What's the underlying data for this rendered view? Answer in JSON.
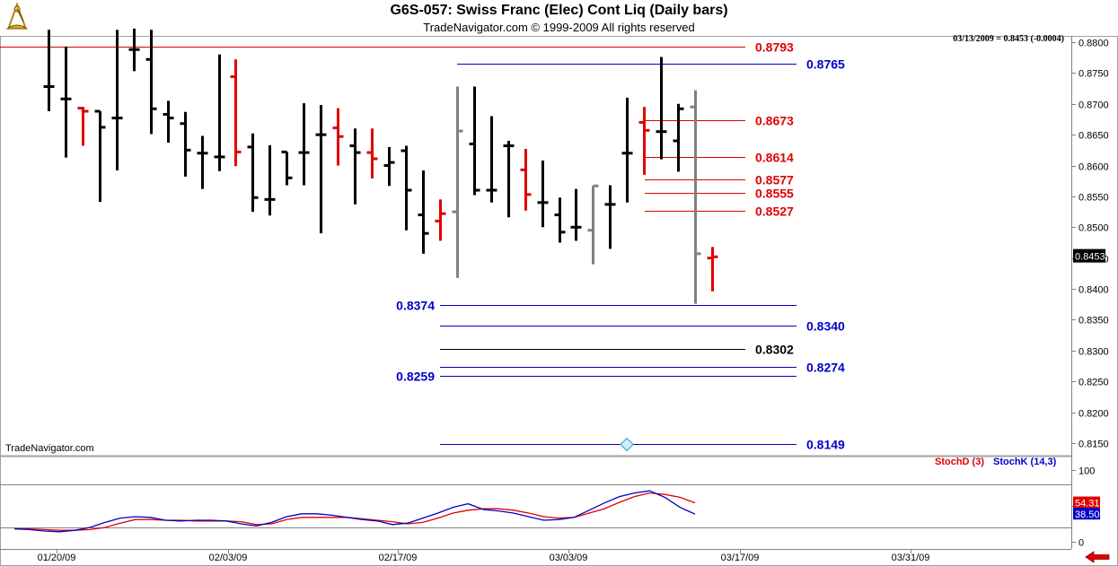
{
  "header": {
    "title": "G6S-057:  Swiss Franc (Elec) Cont Liq  (Daily bars)",
    "subtitle": "TradeNavigator.com © 1999-2009 All rights reserved",
    "readout": "03/13/2009 = 0.8453 (-0.0004)",
    "watermark": "TradeNavigator.com",
    "logo_icon": "sextant-logo-icon",
    "nav_icon": "back-arrow-icon"
  },
  "colors": {
    "up_bar": "#000000",
    "down_bar": "#e00000",
    "neutral_bar": "#808080",
    "blue_level": "#0000c8",
    "red_level": "#e00000",
    "black_level": "#000000",
    "stoch_d": "#e00000",
    "stoch_k": "#0000c8",
    "last_price_bg": "#000000"
  },
  "chart_data": [
    {
      "type": "ohlc",
      "title": "G6S-057:  Swiss Franc (Elec) Cont Liq  (Daily bars)",
      "y_axis": {
        "ylim": [
          0.812,
          0.8815
        ],
        "ticks": [
          "0.8800",
          "0.8750",
          "0.8700",
          "0.8650",
          "0.8600",
          "0.8550",
          "0.8500",
          "0.8450",
          "0.8400",
          "0.8350",
          "0.8300",
          "0.8250",
          "0.8200",
          "0.8150"
        ],
        "last_price_label": "0.8453"
      },
      "x_axis": {
        "tick_labels": [
          "01/20/09",
          "02/03/09",
          "02/17/09",
          "03/03/09",
          "03/17/09",
          "03/31/09"
        ]
      },
      "bars": [
        {
          "date": "01/14/09",
          "h": 0.882,
          "l": 0.8688,
          "o": 0.8728,
          "c": 0.8728,
          "color": "up_bar"
        },
        {
          "date": "01/15/09",
          "h": 0.8793,
          "l": 0.8613,
          "o": 0.8708,
          "c": 0.8708,
          "color": "up_bar"
        },
        {
          "date": "01/16/09",
          "h": 0.8695,
          "l": 0.8632,
          "o": 0.8693,
          "c": 0.8688,
          "color": "down_bar"
        },
        {
          "date": "01/20/09",
          "h": 0.8688,
          "l": 0.8541,
          "o": 0.8688,
          "c": 0.8662,
          "color": "up_bar"
        },
        {
          "date": "01/21/09",
          "h": 0.882,
          "l": 0.8592,
          "o": 0.8677,
          "c": 0.8677,
          "color": "up_bar"
        },
        {
          "date": "01/22/09",
          "h": 0.8822,
          "l": 0.8753,
          "o": 0.8788,
          "c": 0.8788,
          "color": "up_bar"
        },
        {
          "date": "01/23/09",
          "h": 0.882,
          "l": 0.8651,
          "o": 0.8772,
          "c": 0.8692,
          "color": "up_bar"
        },
        {
          "date": "01/26/09",
          "h": 0.8705,
          "l": 0.8637,
          "o": 0.8683,
          "c": 0.8677,
          "color": "up_bar"
        },
        {
          "date": "01/27/09",
          "h": 0.8687,
          "l": 0.8582,
          "o": 0.8668,
          "c": 0.8625,
          "color": "up_bar"
        },
        {
          "date": "01/28/09",
          "h": 0.8648,
          "l": 0.8562,
          "o": 0.862,
          "c": 0.862,
          "color": "up_bar"
        },
        {
          "date": "01/29/09",
          "h": 0.878,
          "l": 0.8591,
          "o": 0.8614,
          "c": 0.8614,
          "color": "up_bar"
        },
        {
          "date": "01/30/09",
          "h": 0.8772,
          "l": 0.8599,
          "o": 0.8744,
          "c": 0.8622,
          "color": "down_bar"
        },
        {
          "date": "02/02/09",
          "h": 0.8652,
          "l": 0.8525,
          "o": 0.863,
          "c": 0.8548,
          "color": "up_bar"
        },
        {
          "date": "02/03/09",
          "h": 0.8633,
          "l": 0.8519,
          "o": 0.8545,
          "c": 0.8545,
          "color": "up_bar"
        },
        {
          "date": "02/04/09",
          "h": 0.8622,
          "l": 0.8568,
          "o": 0.8622,
          "c": 0.858,
          "color": "up_bar"
        },
        {
          "date": "02/05/09",
          "h": 0.8701,
          "l": 0.8568,
          "o": 0.8621,
          "c": 0.8621,
          "color": "up_bar"
        },
        {
          "date": "02/06/09",
          "h": 0.8698,
          "l": 0.849,
          "o": 0.865,
          "c": 0.865,
          "color": "up_bar"
        },
        {
          "date": "02/09/09",
          "h": 0.8693,
          "l": 0.86,
          "o": 0.8661,
          "c": 0.8647,
          "color": "down_bar"
        },
        {
          "date": "02/10/09",
          "h": 0.866,
          "l": 0.8537,
          "o": 0.8632,
          "c": 0.8621,
          "color": "up_bar"
        },
        {
          "date": "02/11/09",
          "h": 0.866,
          "l": 0.8579,
          "o": 0.8621,
          "c": 0.8611,
          "color": "down_bar"
        },
        {
          "date": "02/12/09",
          "h": 0.863,
          "l": 0.8567,
          "o": 0.86,
          "c": 0.8605,
          "color": "up_bar"
        },
        {
          "date": "02/13/09",
          "h": 0.8632,
          "l": 0.8495,
          "o": 0.8624,
          "c": 0.856,
          "color": "up_bar"
        },
        {
          "date": "02/17/09",
          "h": 0.8592,
          "l": 0.8457,
          "o": 0.852,
          "c": 0.849,
          "color": "up_bar"
        },
        {
          "date": "02/18/09",
          "h": 0.8545,
          "l": 0.8478,
          "o": 0.851,
          "c": 0.8522,
          "color": "down_bar"
        },
        {
          "date": "02/19/09",
          "h": 0.8728,
          "l": 0.8418,
          "o": 0.8525,
          "c": 0.8656,
          "color": "neutral_bar"
        },
        {
          "date": "02/20/09",
          "h": 0.8728,
          "l": 0.8552,
          "o": 0.8635,
          "c": 0.856,
          "color": "up_bar"
        },
        {
          "date": "02/23/09",
          "h": 0.868,
          "l": 0.854,
          "o": 0.856,
          "c": 0.856,
          "color": "up_bar"
        },
        {
          "date": "02/24/09",
          "h": 0.864,
          "l": 0.8516,
          "o": 0.8632,
          "c": 0.8632,
          "color": "up_bar"
        },
        {
          "date": "02/25/09",
          "h": 0.8627,
          "l": 0.8527,
          "o": 0.8593,
          "c": 0.8553,
          "color": "down_bar"
        },
        {
          "date": "02/26/09",
          "h": 0.8608,
          "l": 0.85,
          "o": 0.854,
          "c": 0.854,
          "color": "up_bar"
        },
        {
          "date": "02/27/09",
          "h": 0.8548,
          "l": 0.8475,
          "o": 0.852,
          "c": 0.8492,
          "color": "up_bar"
        },
        {
          "date": "03/02/09",
          "h": 0.8562,
          "l": 0.8478,
          "o": 0.85,
          "c": 0.85,
          "color": "up_bar"
        },
        {
          "date": "03/03/09",
          "h": 0.8567,
          "l": 0.844,
          "o": 0.8495,
          "c": 0.8567,
          "color": "neutral_bar"
        },
        {
          "date": "03/04/09",
          "h": 0.8568,
          "l": 0.8465,
          "o": 0.8537,
          "c": 0.8537,
          "color": "up_bar"
        },
        {
          "date": "03/05/09",
          "h": 0.871,
          "l": 0.854,
          "o": 0.862,
          "c": 0.862,
          "color": "up_bar"
        },
        {
          "date": "03/06/09",
          "h": 0.8695,
          "l": 0.8585,
          "o": 0.867,
          "c": 0.8657,
          "color": "down_bar"
        },
        {
          "date": "03/09/09",
          "h": 0.8776,
          "l": 0.861,
          "o": 0.8655,
          "c": 0.8655,
          "color": "up_bar"
        },
        {
          "date": "03/10/09",
          "h": 0.87,
          "l": 0.859,
          "o": 0.864,
          "c": 0.8692,
          "color": "up_bar"
        },
        {
          "date": "03/11/09",
          "h": 0.8722,
          "l": 0.8376,
          "o": 0.8695,
          "c": 0.8457,
          "color": "neutral_bar"
        },
        {
          "date": "03/12/09",
          "h": 0.8468,
          "l": 0.8396,
          "o": 0.845,
          "c": 0.8452,
          "color": "down_bar"
        }
      ],
      "levels": [
        {
          "label": "0.8793",
          "value": 0.8793,
          "color": "red_level"
        },
        {
          "label": "0.8765",
          "value": 0.8765,
          "color": "blue_level"
        },
        {
          "label": "0.8673",
          "value": 0.8673,
          "color": "red_level"
        },
        {
          "label": "0.8614",
          "value": 0.8614,
          "color": "red_level"
        },
        {
          "label": "0.8577",
          "value": 0.8577,
          "color": "red_level"
        },
        {
          "label": "0.8555",
          "value": 0.8555,
          "color": "red_level"
        },
        {
          "label": "0.8527",
          "value": 0.8527,
          "color": "red_level"
        },
        {
          "label": "0.8374",
          "value": 0.8374,
          "color": "blue_level"
        },
        {
          "label": "0.8340",
          "value": 0.834,
          "color": "blue_level"
        },
        {
          "label": "0.8302",
          "value": 0.8302,
          "color": "black_level"
        },
        {
          "label": "0.8274",
          "value": 0.8274,
          "color": "blue_level"
        },
        {
          "label": "0.8259",
          "value": 0.8259,
          "color": "blue_level"
        },
        {
          "label": "0.8149",
          "value": 0.8149,
          "color": "blue_level"
        }
      ]
    },
    {
      "type": "line",
      "title": "",
      "legend": [
        "StochD (3)",
        "StochK (14,3)"
      ],
      "legend_placement": "top-right",
      "ylim": [
        -5,
        118
      ],
      "y_ticks": [
        "100",
        "50",
        "0"
      ],
      "reference_lines": [
        80,
        20
      ],
      "series": [
        {
          "name": "StochD (3)",
          "color": "stoch_d",
          "values": [
            18,
            18,
            17,
            16,
            16,
            17,
            20,
            26,
            31,
            31,
            30,
            30,
            29,
            29,
            29,
            28,
            24,
            25,
            31,
            34,
            34,
            34,
            34,
            32,
            30,
            28,
            25,
            27,
            33,
            40,
            44,
            46,
            46,
            44,
            40,
            35,
            33,
            34,
            40,
            46,
            55,
            63,
            68,
            66,
            62,
            54.31
          ]
        },
        {
          "name": "StochK (14,3)",
          "color": "stoch_k",
          "values": [
            18,
            17,
            15,
            14,
            16,
            20,
            27,
            33,
            35,
            34,
            30,
            29,
            30,
            30,
            29,
            25,
            22,
            27,
            35,
            39,
            39,
            37,
            34,
            31,
            29,
            24,
            26,
            33,
            40,
            48,
            53,
            45,
            43,
            40,
            35,
            30,
            31,
            34,
            44,
            54,
            63,
            68,
            71,
            62,
            48,
            38.5
          ]
        }
      ],
      "value_labels": [
        "54.31",
        "38.50"
      ]
    }
  ]
}
